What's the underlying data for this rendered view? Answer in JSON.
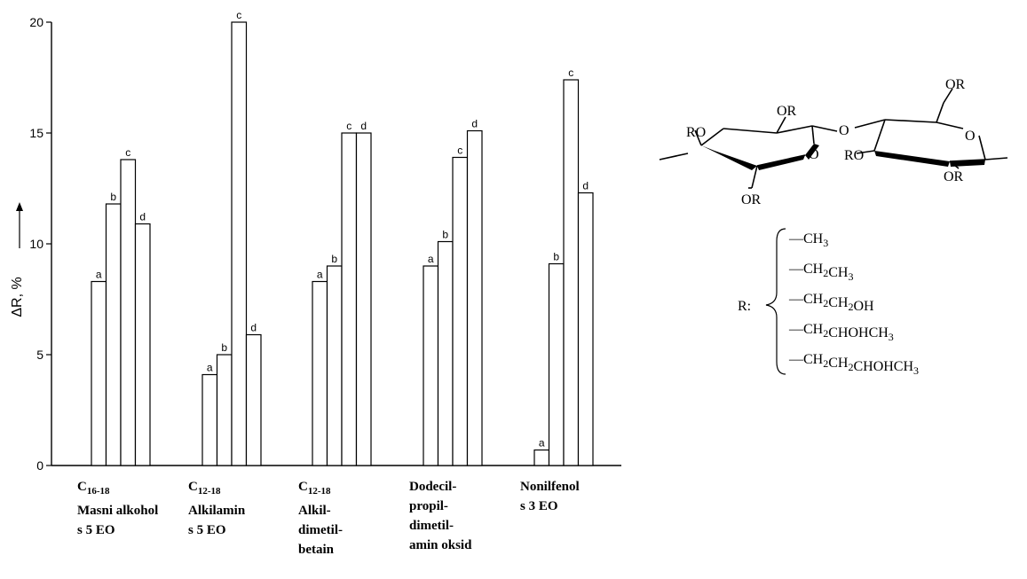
{
  "chart_data": {
    "type": "bar",
    "title": "",
    "xlabel": "",
    "ylabel": "ΔR, %",
    "ylim": [
      0,
      20
    ],
    "yticks": [
      0,
      5,
      10,
      15,
      20
    ],
    "grid": false,
    "legend": "none",
    "bar_labels": [
      "a",
      "b",
      "c",
      "d"
    ],
    "categories": [
      {
        "lines": [
          {
            "main": "C",
            "sub": "16-18"
          },
          {
            "main": "Masni alkohol"
          },
          {
            "main": "s 5 EO"
          }
        ],
        "values": [
          8.3,
          11.8,
          13.8,
          10.9
        ]
      },
      {
        "lines": [
          {
            "main": "C",
            "sub": "12-18"
          },
          {
            "main": "Alkilamin"
          },
          {
            "main": "s 5 EO"
          }
        ],
        "values": [
          4.1,
          5.0,
          20.0,
          5.9
        ]
      },
      {
        "lines": [
          {
            "main": "C",
            "sub": "12-18"
          },
          {
            "main": "Alkil-"
          },
          {
            "main": "dimetil-"
          },
          {
            "main": "betain"
          }
        ],
        "values": [
          8.3,
          9.0,
          15.0,
          15.0
        ]
      },
      {
        "lines": [
          {
            "main": "Dodecil-"
          },
          {
            "main": "propil-"
          },
          {
            "main": "dimetil-"
          },
          {
            "main": "amin oksid"
          }
        ],
        "values": [
          9.0,
          10.1,
          13.9,
          15.1
        ]
      },
      {
        "lines": [
          {
            "main": "Nonilfenol"
          },
          {
            "main": "s 3 EO"
          }
        ],
        "values": [
          0.7,
          9.1,
          17.4,
          12.3
        ]
      }
    ]
  },
  "structure": {
    "ring_labels": [
      "OR",
      "RO",
      "O",
      "OR",
      "O",
      "RO",
      "O",
      "OR",
      "OR"
    ],
    "r_prefix": "R:",
    "substituents": [
      {
        "parts": [
          {
            "t": "—CH"
          },
          {
            "s": "3"
          }
        ]
      },
      {
        "parts": [
          {
            "t": "—CH"
          },
          {
            "s": "2"
          },
          {
            "t": "CH"
          },
          {
            "s": "3"
          }
        ]
      },
      {
        "parts": [
          {
            "t": "—CH"
          },
          {
            "s": "2"
          },
          {
            "t": "CH"
          },
          {
            "s": "2"
          },
          {
            "t": "OH"
          }
        ]
      },
      {
        "parts": [
          {
            "t": "—CH"
          },
          {
            "s": "2"
          },
          {
            "t": "CHOHCH"
          },
          {
            "s": "3"
          }
        ]
      },
      {
        "parts": [
          {
            "t": "—CH"
          },
          {
            "s": "2"
          },
          {
            "t": "CH"
          },
          {
            "s": "2"
          },
          {
            "t": "CHOHCH"
          },
          {
            "s": "3"
          }
        ]
      }
    ]
  }
}
